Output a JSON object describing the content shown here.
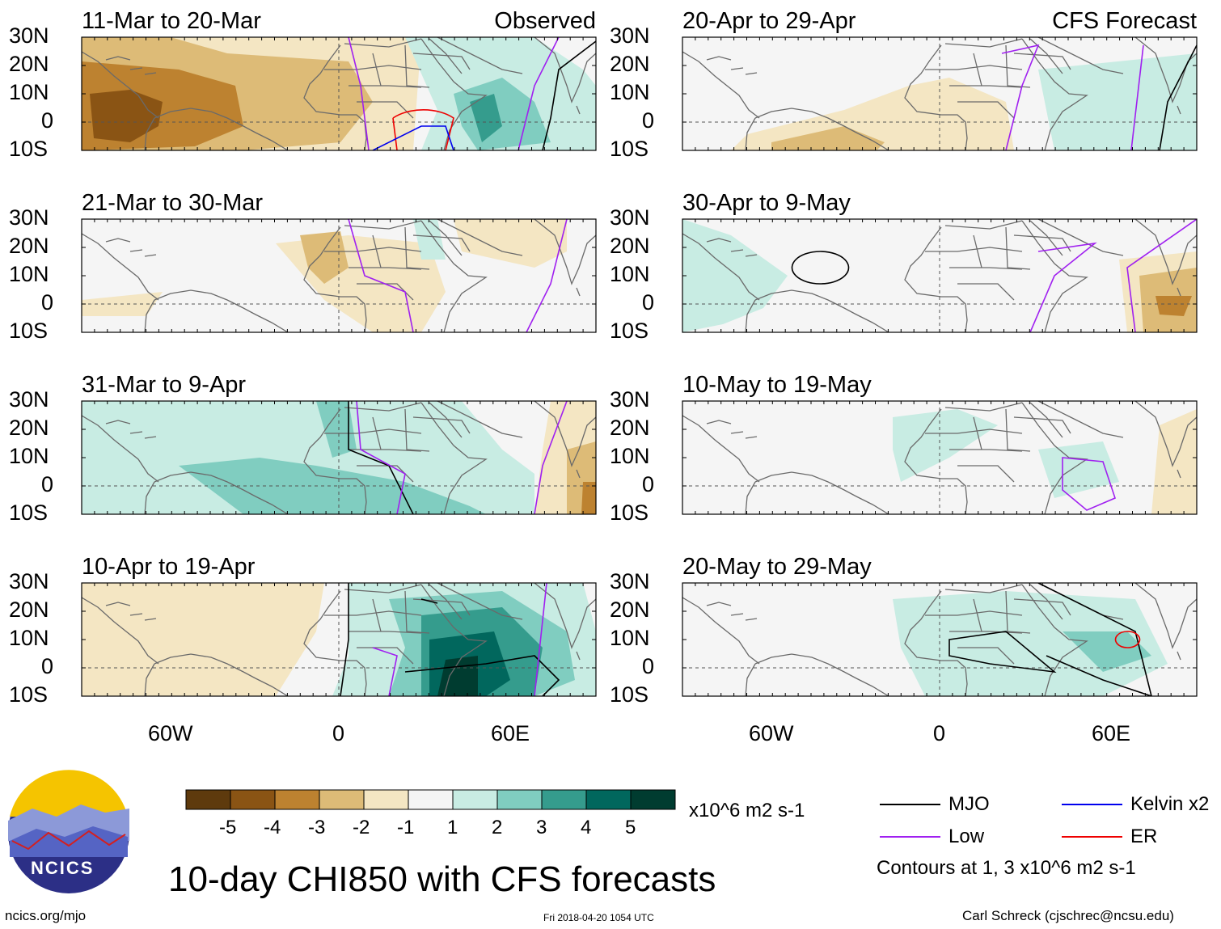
{
  "figure": {
    "title": "10-day CHI850 with CFS forecasts",
    "units": "x10^6 m2 s-1",
    "contour_note": "Contours at 1, 3 x10^6 m2 s-1",
    "footer_left": "ncics.org/mjo",
    "footer_center": "Fri 2018-04-20 1054 UTC",
    "footer_right": "Carl Schreck (cjschrec@ncsu.edu)",
    "logo_text": "NCICS",
    "observed_label": "Observed",
    "forecast_label": "CFS Forecast"
  },
  "axes": {
    "lat_ticks": [
      "30N",
      "20N",
      "10N",
      "0",
      "10S"
    ],
    "lon_ticks": [
      "60W",
      "0",
      "60E"
    ]
  },
  "colorbar": {
    "ticks": [
      "-5",
      "-4",
      "-3",
      "-2",
      "-1",
      "1",
      "2",
      "3",
      "4",
      "5"
    ],
    "colors": [
      "#5e3a0d",
      "#8a5414",
      "#bd8230",
      "#ddbb77",
      "#f4e6c3",
      "#f5f5f5",
      "#c8ece3",
      "#80cdc0",
      "#359c8d",
      "#01675d",
      "#003c30"
    ]
  },
  "legend": {
    "items": [
      {
        "label": "MJO",
        "color": "#000000"
      },
      {
        "label": "Kelvin x2",
        "color": "#0000ee"
      },
      {
        "label": "Low",
        "color": "#a020f0"
      },
      {
        "label": "ER",
        "color": "#ee0000"
      }
    ]
  },
  "panels": [
    {
      "title": "11-Mar to 20-Mar",
      "tag": "Observed",
      "col": 0,
      "row": 0
    },
    {
      "title": "21-Mar to 30-Mar",
      "tag": "",
      "col": 0,
      "row": 1
    },
    {
      "title": "31-Mar to 9-Apr",
      "tag": "",
      "col": 0,
      "row": 2
    },
    {
      "title": "10-Apr to 19-Apr",
      "tag": "",
      "col": 0,
      "row": 3
    },
    {
      "title": "20-Apr to 29-Apr",
      "tag": "CFS Forecast",
      "col": 1,
      "row": 0
    },
    {
      "title": "30-Apr to 9-May",
      "tag": "",
      "col": 1,
      "row": 1
    },
    {
      "title": "10-May to 19-May",
      "tag": "",
      "col": 1,
      "row": 2
    },
    {
      "title": "20-May to 29-May",
      "tag": "",
      "col": 1,
      "row": 3
    }
  ]
}
